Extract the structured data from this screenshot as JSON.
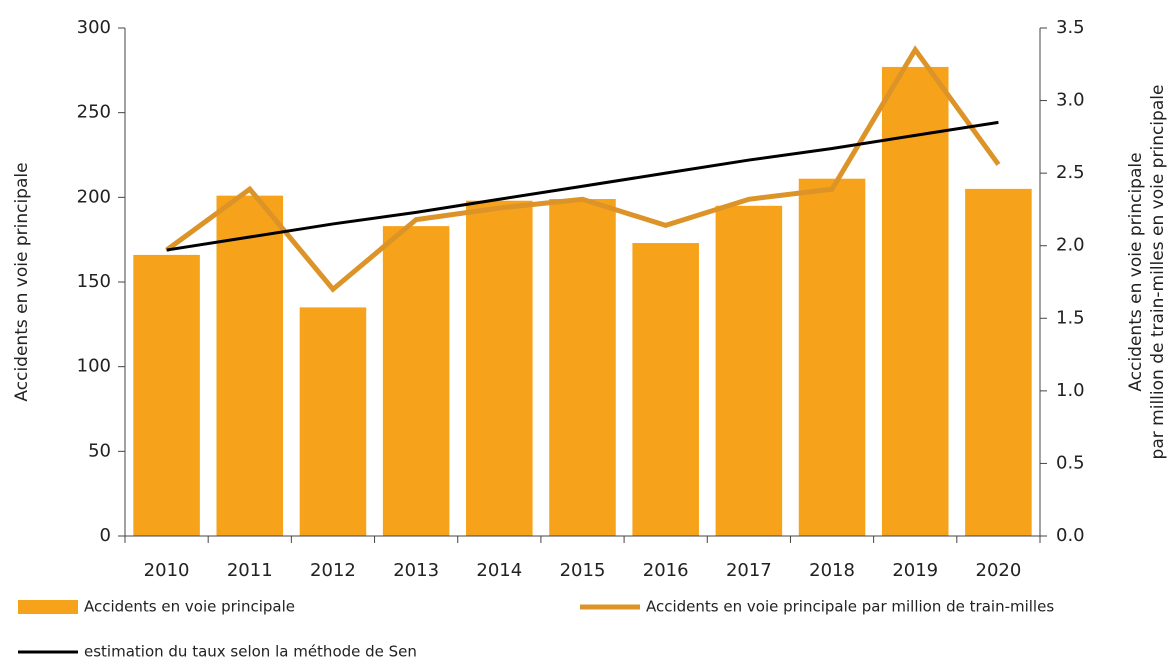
{
  "chart_data": {
    "type": "bar",
    "ylabel": "Accidents en voie principale",
    "y2label": [
      "Accidents en voie principale",
      "par million de train-milles en voie principale"
    ],
    "categories": [
      "2010",
      "2011",
      "2012",
      "2013",
      "2014",
      "2015",
      "2016",
      "2017",
      "2018",
      "2019",
      "2020"
    ],
    "series": [
      {
        "name": "Accidents en voie principale",
        "type": "bar",
        "color": "#f7a21b",
        "values": [
          166,
          201,
          135,
          183,
          198,
          199,
          173,
          195,
          211,
          277,
          205
        ]
      },
      {
        "name": "Accidents en voie principale par million de train-milles",
        "type": "line",
        "axis": "y2",
        "color": "#dc9429",
        "values": [
          1.97,
          2.39,
          1.7,
          2.18,
          2.26,
          2.32,
          2.14,
          2.32,
          2.39,
          3.35,
          2.56
        ]
      },
      {
        "name": "estimation du taux selon la méthode de Sen",
        "type": "line",
        "axis": "y2",
        "color": "#000000",
        "values": [
          1.97,
          2.06,
          2.15,
          2.23,
          2.32,
          2.41,
          2.5,
          2.59,
          2.67,
          2.76,
          2.85
        ]
      }
    ],
    "ylim": [
      0,
      300
    ],
    "yticks": [
      0,
      50,
      100,
      150,
      200,
      250,
      300
    ],
    "y2lim": [
      0,
      3.5
    ],
    "y2ticks": [
      {
        "value": 0,
        "label": "0.0"
      },
      0.5,
      {
        "value": 1,
        "label": "1.0"
      },
      1.5,
      {
        "value": 2,
        "label": "2.0"
      },
      2.5,
      {
        "value": 3,
        "label": "3.0"
      },
      3.5
    ]
  }
}
